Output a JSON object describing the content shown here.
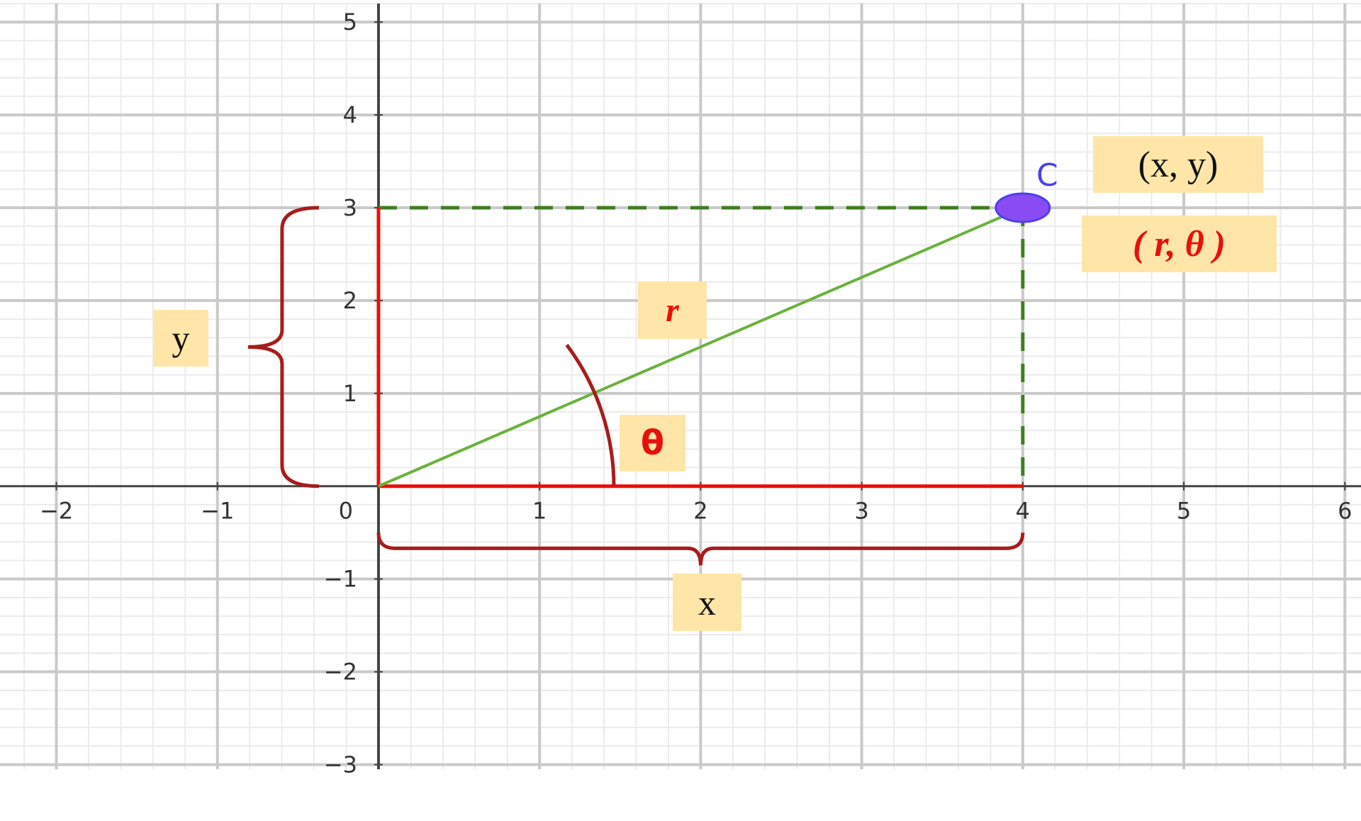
{
  "chart_data": {
    "type": "scatter",
    "xlim": [
      -2.35,
      6.1
    ],
    "ylim": [
      -3.05,
      5.2
    ],
    "grid": true,
    "x_ticks": [
      {
        "value": -2,
        "label": "−2"
      },
      {
        "value": -1,
        "label": "−1"
      },
      {
        "value": 1,
        "label": "1"
      },
      {
        "value": 2,
        "label": "2"
      },
      {
        "value": 3,
        "label": "3"
      },
      {
        "value": 4,
        "label": "4"
      },
      {
        "value": 5,
        "label": "5"
      },
      {
        "value": 6,
        "label": "6"
      }
    ],
    "y_ticks": [
      {
        "value": -3,
        "label": "−3"
      },
      {
        "value": -2,
        "label": "−2"
      },
      {
        "value": -1,
        "label": "−1"
      },
      {
        "value": 1,
        "label": "1"
      },
      {
        "value": 2,
        "label": "2"
      },
      {
        "value": 3,
        "label": "3"
      },
      {
        "value": 4,
        "label": "4"
      },
      {
        "value": 5,
        "label": "5"
      }
    ],
    "origin_label": "0",
    "point": {
      "name": "C",
      "x": 4,
      "y": 3
    },
    "colors": {
      "axis": "#444444",
      "grid_major": "#c9c9c9",
      "grid_minor": "#ebebeb",
      "radius_segment": "#6ab23a",
      "projection": "#3f7f1f",
      "red_segment": "#e8100a",
      "brace": "#a81c1c",
      "point_fill": "#8a4cf2",
      "point_stroke": "#4b3ff0",
      "label_background": "#ffe6a8"
    }
  },
  "labels": {
    "y": "y",
    "x": "x",
    "r": "r",
    "theta": "θ",
    "cartesian": "(x, y)",
    "polar": "( r, θ )"
  }
}
